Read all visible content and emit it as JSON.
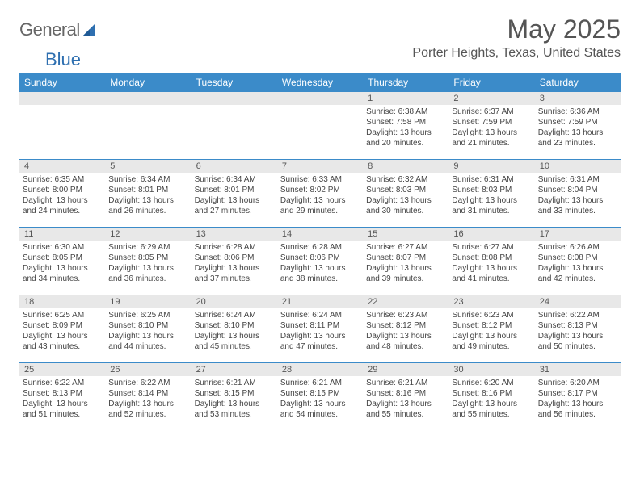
{
  "logo": {
    "word1": "General",
    "word2": "Blue"
  },
  "month_title": "May 2025",
  "location": "Porter Heights, Texas, United States",
  "colors": {
    "header_bg": "#3b8bc9",
    "header_text": "#ffffff",
    "daynum_bg": "#e8e8e8",
    "border": "#3b8bc9",
    "text": "#444444",
    "logo_gray": "#666666",
    "logo_blue": "#2e6fb0"
  },
  "day_names": [
    "Sunday",
    "Monday",
    "Tuesday",
    "Wednesday",
    "Thursday",
    "Friday",
    "Saturday"
  ],
  "weeks": [
    [
      {
        "day": "",
        "sunrise": "",
        "sunset": "",
        "daylight": ""
      },
      {
        "day": "",
        "sunrise": "",
        "sunset": "",
        "daylight": ""
      },
      {
        "day": "",
        "sunrise": "",
        "sunset": "",
        "daylight": ""
      },
      {
        "day": "",
        "sunrise": "",
        "sunset": "",
        "daylight": ""
      },
      {
        "day": "1",
        "sunrise": "Sunrise: 6:38 AM",
        "sunset": "Sunset: 7:58 PM",
        "daylight": "Daylight: 13 hours and 20 minutes."
      },
      {
        "day": "2",
        "sunrise": "Sunrise: 6:37 AM",
        "sunset": "Sunset: 7:59 PM",
        "daylight": "Daylight: 13 hours and 21 minutes."
      },
      {
        "day": "3",
        "sunrise": "Sunrise: 6:36 AM",
        "sunset": "Sunset: 7:59 PM",
        "daylight": "Daylight: 13 hours and 23 minutes."
      }
    ],
    [
      {
        "day": "4",
        "sunrise": "Sunrise: 6:35 AM",
        "sunset": "Sunset: 8:00 PM",
        "daylight": "Daylight: 13 hours and 24 minutes."
      },
      {
        "day": "5",
        "sunrise": "Sunrise: 6:34 AM",
        "sunset": "Sunset: 8:01 PM",
        "daylight": "Daylight: 13 hours and 26 minutes."
      },
      {
        "day": "6",
        "sunrise": "Sunrise: 6:34 AM",
        "sunset": "Sunset: 8:01 PM",
        "daylight": "Daylight: 13 hours and 27 minutes."
      },
      {
        "day": "7",
        "sunrise": "Sunrise: 6:33 AM",
        "sunset": "Sunset: 8:02 PM",
        "daylight": "Daylight: 13 hours and 29 minutes."
      },
      {
        "day": "8",
        "sunrise": "Sunrise: 6:32 AM",
        "sunset": "Sunset: 8:03 PM",
        "daylight": "Daylight: 13 hours and 30 minutes."
      },
      {
        "day": "9",
        "sunrise": "Sunrise: 6:31 AM",
        "sunset": "Sunset: 8:03 PM",
        "daylight": "Daylight: 13 hours and 31 minutes."
      },
      {
        "day": "10",
        "sunrise": "Sunrise: 6:31 AM",
        "sunset": "Sunset: 8:04 PM",
        "daylight": "Daylight: 13 hours and 33 minutes."
      }
    ],
    [
      {
        "day": "11",
        "sunrise": "Sunrise: 6:30 AM",
        "sunset": "Sunset: 8:05 PM",
        "daylight": "Daylight: 13 hours and 34 minutes."
      },
      {
        "day": "12",
        "sunrise": "Sunrise: 6:29 AM",
        "sunset": "Sunset: 8:05 PM",
        "daylight": "Daylight: 13 hours and 36 minutes."
      },
      {
        "day": "13",
        "sunrise": "Sunrise: 6:28 AM",
        "sunset": "Sunset: 8:06 PM",
        "daylight": "Daylight: 13 hours and 37 minutes."
      },
      {
        "day": "14",
        "sunrise": "Sunrise: 6:28 AM",
        "sunset": "Sunset: 8:06 PM",
        "daylight": "Daylight: 13 hours and 38 minutes."
      },
      {
        "day": "15",
        "sunrise": "Sunrise: 6:27 AM",
        "sunset": "Sunset: 8:07 PM",
        "daylight": "Daylight: 13 hours and 39 minutes."
      },
      {
        "day": "16",
        "sunrise": "Sunrise: 6:27 AM",
        "sunset": "Sunset: 8:08 PM",
        "daylight": "Daylight: 13 hours and 41 minutes."
      },
      {
        "day": "17",
        "sunrise": "Sunrise: 6:26 AM",
        "sunset": "Sunset: 8:08 PM",
        "daylight": "Daylight: 13 hours and 42 minutes."
      }
    ],
    [
      {
        "day": "18",
        "sunrise": "Sunrise: 6:25 AM",
        "sunset": "Sunset: 8:09 PM",
        "daylight": "Daylight: 13 hours and 43 minutes."
      },
      {
        "day": "19",
        "sunrise": "Sunrise: 6:25 AM",
        "sunset": "Sunset: 8:10 PM",
        "daylight": "Daylight: 13 hours and 44 minutes."
      },
      {
        "day": "20",
        "sunrise": "Sunrise: 6:24 AM",
        "sunset": "Sunset: 8:10 PM",
        "daylight": "Daylight: 13 hours and 45 minutes."
      },
      {
        "day": "21",
        "sunrise": "Sunrise: 6:24 AM",
        "sunset": "Sunset: 8:11 PM",
        "daylight": "Daylight: 13 hours and 47 minutes."
      },
      {
        "day": "22",
        "sunrise": "Sunrise: 6:23 AM",
        "sunset": "Sunset: 8:12 PM",
        "daylight": "Daylight: 13 hours and 48 minutes."
      },
      {
        "day": "23",
        "sunrise": "Sunrise: 6:23 AM",
        "sunset": "Sunset: 8:12 PM",
        "daylight": "Daylight: 13 hours and 49 minutes."
      },
      {
        "day": "24",
        "sunrise": "Sunrise: 6:22 AM",
        "sunset": "Sunset: 8:13 PM",
        "daylight": "Daylight: 13 hours and 50 minutes."
      }
    ],
    [
      {
        "day": "25",
        "sunrise": "Sunrise: 6:22 AM",
        "sunset": "Sunset: 8:13 PM",
        "daylight": "Daylight: 13 hours and 51 minutes."
      },
      {
        "day": "26",
        "sunrise": "Sunrise: 6:22 AM",
        "sunset": "Sunset: 8:14 PM",
        "daylight": "Daylight: 13 hours and 52 minutes."
      },
      {
        "day": "27",
        "sunrise": "Sunrise: 6:21 AM",
        "sunset": "Sunset: 8:15 PM",
        "daylight": "Daylight: 13 hours and 53 minutes."
      },
      {
        "day": "28",
        "sunrise": "Sunrise: 6:21 AM",
        "sunset": "Sunset: 8:15 PM",
        "daylight": "Daylight: 13 hours and 54 minutes."
      },
      {
        "day": "29",
        "sunrise": "Sunrise: 6:21 AM",
        "sunset": "Sunset: 8:16 PM",
        "daylight": "Daylight: 13 hours and 55 minutes."
      },
      {
        "day": "30",
        "sunrise": "Sunrise: 6:20 AM",
        "sunset": "Sunset: 8:16 PM",
        "daylight": "Daylight: 13 hours and 55 minutes."
      },
      {
        "day": "31",
        "sunrise": "Sunrise: 6:20 AM",
        "sunset": "Sunset: 8:17 PM",
        "daylight": "Daylight: 13 hours and 56 minutes."
      }
    ]
  ]
}
